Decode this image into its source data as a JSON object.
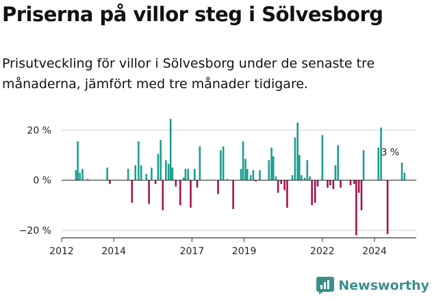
{
  "title": "Priserna på villor steg i Sölvesborg",
  "subtitle": "Prisutveckling för villor i Sölvesborg under de senaste tre månaderna, jämfört med tre månader tidigare.",
  "brand": {
    "name": "Newsworthy",
    "logo_icon": "newsworthy-logo-icon",
    "color": "#3a8f8a"
  },
  "colors": {
    "positive": "#1a9e8f",
    "negative": "#a3124e",
    "axis": "#333333",
    "grid": "#cccccc"
  },
  "chart_data": {
    "type": "bar",
    "x_axis": {
      "type": "date",
      "ticks": [
        "2012",
        "2014",
        "2017",
        "2019",
        "2022",
        "2024"
      ]
    },
    "y_axis": {
      "ylim": [
        -23,
        25
      ],
      "ticks": [
        20,
        0,
        -20
      ],
      "tick_labels": [
        "20 %",
        "0 %",
        "−20 %"
      ],
      "unit": "%"
    },
    "grid": "horizontal",
    "annotation": {
      "text": "3 %",
      "x": 2024.6,
      "y": 3
    },
    "values": [
      {
        "x": 2012.55,
        "y": 4
      },
      {
        "x": 2012.62,
        "y": 15.5
      },
      {
        "x": 2012.7,
        "y": 3
      },
      {
        "x": 2012.8,
        "y": 4.5
      },
      {
        "x": 2013.0,
        "y": 0.5
      },
      {
        "x": 2013.75,
        "y": 5
      },
      {
        "x": 2013.85,
        "y": -1.5
      },
      {
        "x": 2014.55,
        "y": 4.5
      },
      {
        "x": 2014.7,
        "y": -9
      },
      {
        "x": 2014.83,
        "y": 6
      },
      {
        "x": 2014.95,
        "y": 15.5
      },
      {
        "x": 2015.05,
        "y": 6
      },
      {
        "x": 2015.25,
        "y": 2.5
      },
      {
        "x": 2015.35,
        "y": -9.5
      },
      {
        "x": 2015.45,
        "y": 5
      },
      {
        "x": 2015.6,
        "y": -1.5
      },
      {
        "x": 2015.7,
        "y": 10.5
      },
      {
        "x": 2015.8,
        "y": 16
      },
      {
        "x": 2015.88,
        "y": -12
      },
      {
        "x": 2016.0,
        "y": 8
      },
      {
        "x": 2016.1,
        "y": 6.5
      },
      {
        "x": 2016.18,
        "y": 24.5
      },
      {
        "x": 2016.25,
        "y": 5
      },
      {
        "x": 2016.38,
        "y": -2.5
      },
      {
        "x": 2016.55,
        "y": -10
      },
      {
        "x": 2016.68,
        "y": 1
      },
      {
        "x": 2016.75,
        "y": 4.5
      },
      {
        "x": 2016.85,
        "y": 4.5
      },
      {
        "x": 2016.95,
        "y": -11
      },
      {
        "x": 2017.1,
        "y": 4.5
      },
      {
        "x": 2017.2,
        "y": -3
      },
      {
        "x": 2017.3,
        "y": 13.5
      },
      {
        "x": 2018.0,
        "y": -5.5
      },
      {
        "x": 2018.1,
        "y": 12
      },
      {
        "x": 2018.2,
        "y": 13.5
      },
      {
        "x": 2018.35,
        "y": 0.5
      },
      {
        "x": 2018.58,
        "y": -11.5
      },
      {
        "x": 2018.88,
        "y": 4.5
      },
      {
        "x": 2018.96,
        "y": 15.5
      },
      {
        "x": 2019.05,
        "y": 8.5
      },
      {
        "x": 2019.12,
        "y": 4.5
      },
      {
        "x": 2019.25,
        "y": 2
      },
      {
        "x": 2019.35,
        "y": 4
      },
      {
        "x": 2019.45,
        "y": -0.5
      },
      {
        "x": 2019.6,
        "y": 4
      },
      {
        "x": 2019.95,
        "y": 8
      },
      {
        "x": 2020.05,
        "y": 13
      },
      {
        "x": 2020.12,
        "y": 9.5
      },
      {
        "x": 2020.22,
        "y": 1.5
      },
      {
        "x": 2020.3,
        "y": -5
      },
      {
        "x": 2020.42,
        "y": -1.5
      },
      {
        "x": 2020.55,
        "y": -4
      },
      {
        "x": 2020.65,
        "y": -11
      },
      {
        "x": 2020.85,
        "y": 2
      },
      {
        "x": 2020.95,
        "y": 17
      },
      {
        "x": 2021.05,
        "y": 23
      },
      {
        "x": 2021.12,
        "y": 10
      },
      {
        "x": 2021.2,
        "y": 2
      },
      {
        "x": 2021.32,
        "y": 1
      },
      {
        "x": 2021.42,
        "y": 8
      },
      {
        "x": 2021.52,
        "y": 1.5
      },
      {
        "x": 2021.6,
        "y": -10
      },
      {
        "x": 2021.72,
        "y": -9
      },
      {
        "x": 2021.82,
        "y": -2.5
      },
      {
        "x": 2022.0,
        "y": 18
      },
      {
        "x": 2022.2,
        "y": -3
      },
      {
        "x": 2022.3,
        "y": -2
      },
      {
        "x": 2022.42,
        "y": -3.5
      },
      {
        "x": 2022.5,
        "y": 6
      },
      {
        "x": 2022.6,
        "y": 14
      },
      {
        "x": 2022.7,
        "y": -3
      },
      {
        "x": 2023.08,
        "y": -2
      },
      {
        "x": 2023.22,
        "y": -1.5
      },
      {
        "x": 2023.3,
        "y": -22
      },
      {
        "x": 2023.4,
        "y": -5
      },
      {
        "x": 2023.5,
        "y": -12
      },
      {
        "x": 2023.58,
        "y": 12
      },
      {
        "x": 2024.15,
        "y": 13
      },
      {
        "x": 2024.25,
        "y": 21
      },
      {
        "x": 2024.5,
        "y": -21.5
      },
      {
        "x": 2025.05,
        "y": 7
      },
      {
        "x": 2025.15,
        "y": 3
      }
    ]
  }
}
